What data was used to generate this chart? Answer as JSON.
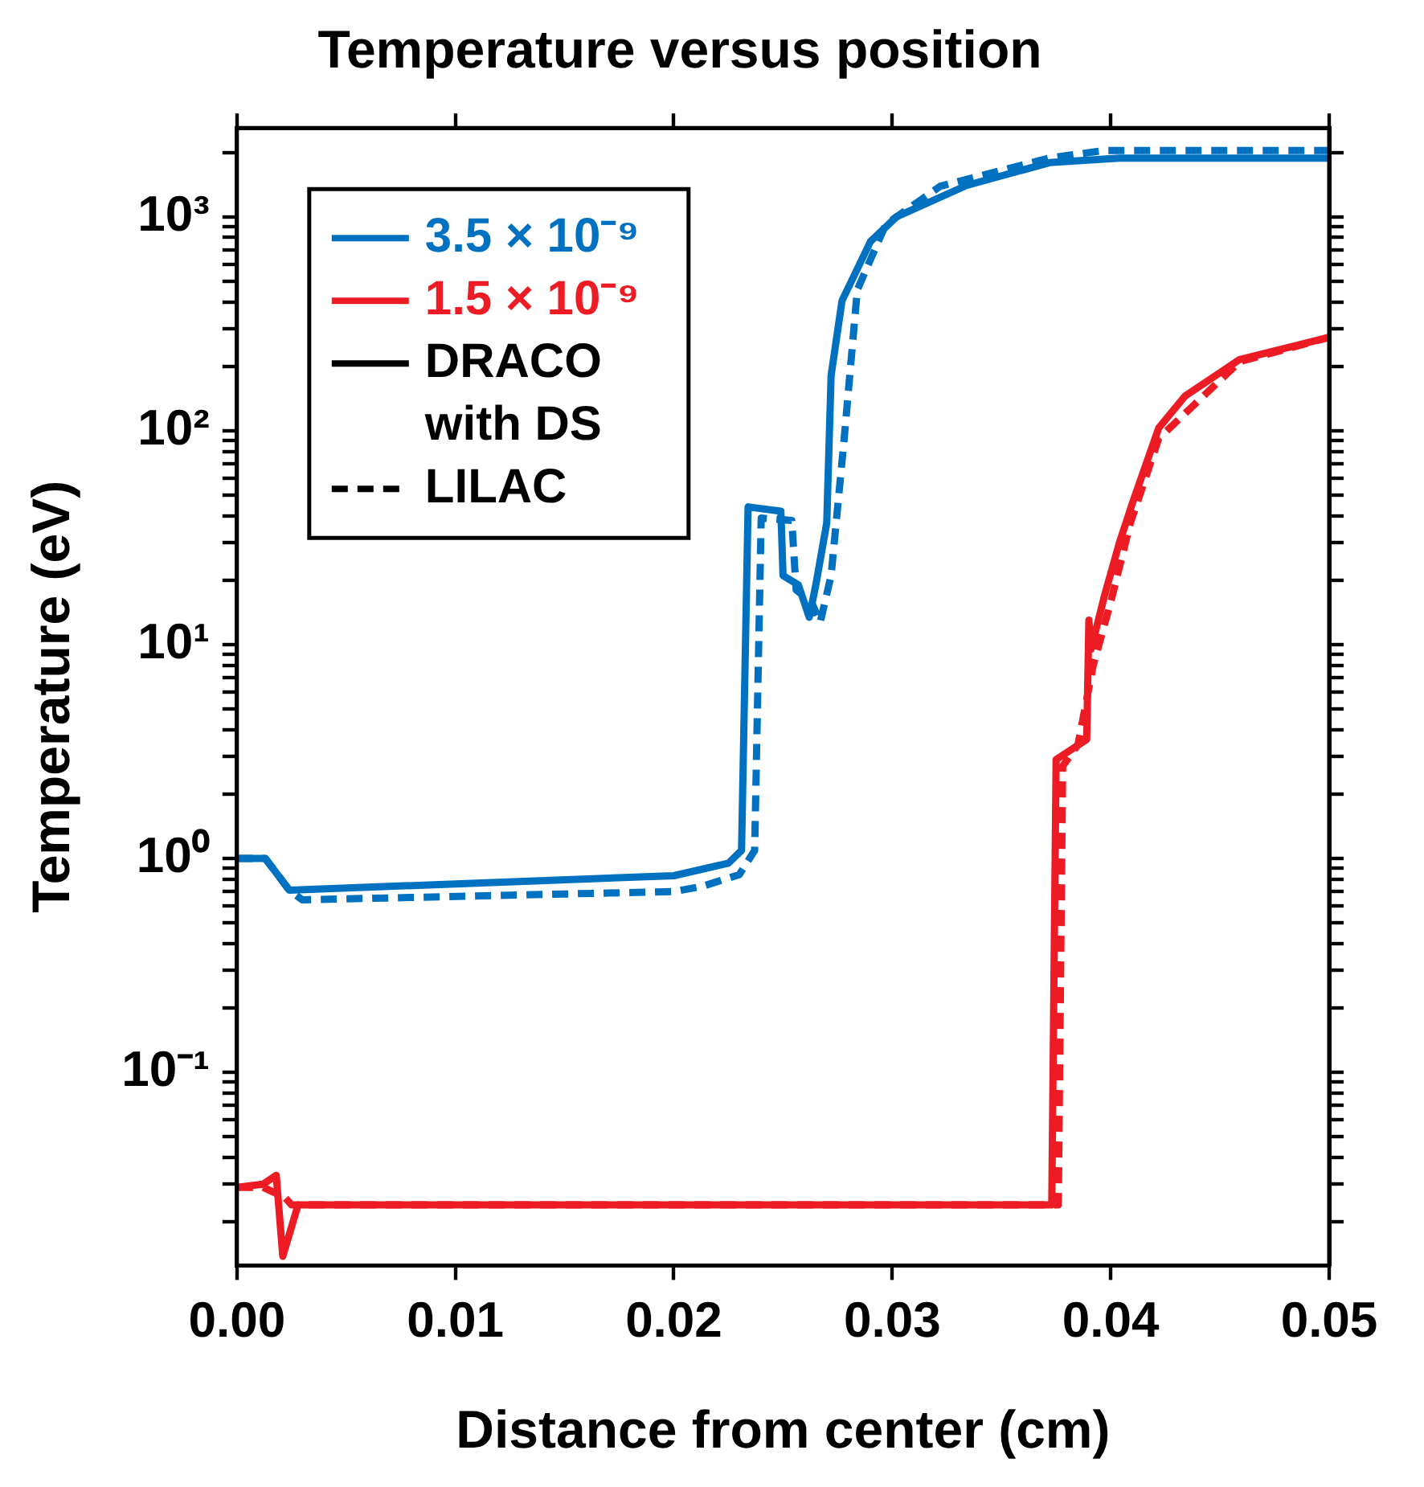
{
  "chart_data": {
    "type": "line",
    "title": "Temperature versus position",
    "xlabel": "Distance from center (cm)",
    "ylabel": "Temperature (eV)",
    "log": "y",
    "grid": false,
    "legend": "top left",
    "marker": "none",
    "xlim": [
      0,
      0.05
    ],
    "xticks": [
      {
        "value": 0,
        "label": "0.00"
      },
      {
        "value": 0.01,
        "label": "0.01"
      },
      {
        "value": 0.02,
        "label": "0.02"
      },
      {
        "value": 0.03,
        "label": "0.03"
      },
      {
        "value": 0.04,
        "label": "0.04"
      },
      {
        "value": 0.05,
        "label": "0.05"
      }
    ],
    "ylim": [
      0.0125,
      2600
    ],
    "yticks": [
      {
        "value": 0.02,
        "label": null
      },
      {
        "value": 0.03,
        "label": null
      },
      {
        "value": 0.04,
        "label": null
      },
      {
        "value": 0.05,
        "label": null
      },
      {
        "value": 0.06,
        "label": null
      },
      {
        "value": 0.07,
        "label": null
      },
      {
        "value": 0.08,
        "label": null
      },
      {
        "value": 0.09,
        "label": null
      },
      {
        "value": 0.1,
        "label": "10⁻¹"
      },
      {
        "value": 0.2,
        "label": null
      },
      {
        "value": 0.3,
        "label": null
      },
      {
        "value": 0.4,
        "label": null
      },
      {
        "value": 0.5,
        "label": null
      },
      {
        "value": 0.6,
        "label": null
      },
      {
        "value": 0.7,
        "label": null
      },
      {
        "value": 0.8,
        "label": null
      },
      {
        "value": 0.9,
        "label": null
      },
      {
        "value": 1,
        "label": "10⁰"
      },
      {
        "value": 2,
        "label": null
      },
      {
        "value": 3,
        "label": null
      },
      {
        "value": 4,
        "label": null
      },
      {
        "value": 5,
        "label": null
      },
      {
        "value": 6,
        "label": null
      },
      {
        "value": 7,
        "label": null
      },
      {
        "value": 8,
        "label": null
      },
      {
        "value": 9,
        "label": null
      },
      {
        "value": 10,
        "label": "10¹"
      },
      {
        "value": 20,
        "label": null
      },
      {
        "value": 30,
        "label": null
      },
      {
        "value": 40,
        "label": null
      },
      {
        "value": 50,
        "label": null
      },
      {
        "value": 60,
        "label": null
      },
      {
        "value": 70,
        "label": null
      },
      {
        "value": 80,
        "label": null
      },
      {
        "value": 90,
        "label": null
      },
      {
        "value": 100,
        "label": "10²"
      },
      {
        "value": 200,
        "label": null
      },
      {
        "value": 300,
        "label": null
      },
      {
        "value": 400,
        "label": null
      },
      {
        "value": 500,
        "label": null
      },
      {
        "value": 600,
        "label": null
      },
      {
        "value": 700,
        "label": null
      },
      {
        "value": 800,
        "label": null
      },
      {
        "value": 900,
        "label": null
      },
      {
        "value": 1000,
        "label": "10³"
      },
      {
        "value": 2000,
        "label": null
      }
    ],
    "series": [
      {
        "name": "3.5 × 10⁻⁹",
        "color": "#0070c0",
        "line_style": "solid",
        "x": [
          0,
          0.0013,
          0.0024,
          0.01,
          0.02,
          0.0225,
          0.0231,
          0.0234,
          0.0249,
          0.025,
          0.0257,
          0.0262,
          0.0265,
          0.027,
          0.0272,
          0.0277,
          0.029,
          0.0302,
          0.0334,
          0.0372,
          0.0404,
          0.05
        ],
        "values": [
          1.0,
          1.0,
          0.71,
          0.76,
          0.83,
          0.95,
          1.09,
          44,
          42,
          21,
          19,
          13.4,
          19,
          37,
          181,
          405,
          765,
          1000,
          1400,
          1790,
          1880,
          1880
        ]
      },
      {
        "name": "1.5 × 10⁻⁹",
        "color": "#ed1c24",
        "line_style": "solid",
        "x": [
          0,
          0.0012,
          0.0018,
          0.0021,
          0.0028,
          0.0373,
          0.0375,
          0.0389,
          0.039,
          0.0391,
          0.0397,
          0.0404,
          0.041,
          0.0422,
          0.0434,
          0.0459,
          0.05
        ],
        "values": [
          0.029,
          0.03,
          0.033,
          0.0138,
          0.024,
          0.024,
          2.9,
          3.6,
          13,
          9.5,
          16.7,
          30,
          46,
          103,
          145,
          215,
          273
        ]
      },
      {
        "color": "#0070c0",
        "line_style": "dashed",
        "x": [
          0,
          0.0013,
          0.0024,
          0.003,
          0.02,
          0.0213,
          0.023,
          0.0237,
          0.024,
          0.0254,
          0.0256,
          0.0263,
          0.0267,
          0.0272,
          0.0278,
          0.0284,
          0.0297,
          0.0322,
          0.0372,
          0.0397,
          0.05
        ],
        "values": [
          1.0,
          1.0,
          0.71,
          0.64,
          0.7,
          0.74,
          0.84,
          1.09,
          39,
          38,
          18,
          15.8,
          12.7,
          21,
          92,
          455,
          920,
          1390,
          1880,
          2040,
          2040
        ]
      },
      {
        "color": "#ed1c24",
        "line_style": "dashed",
        "x": [
          0,
          0.0012,
          0.0022,
          0.0025,
          0.0376,
          0.0378,
          0.0385,
          0.0392,
          0.04,
          0.0409,
          0.0422,
          0.0459,
          0.05
        ],
        "values": [
          0.029,
          0.029,
          0.026,
          0.024,
          0.024,
          2.7,
          3.4,
          8,
          15.8,
          37,
          92,
          210,
          273
        ]
      },
      {
        "name": "DRACO with DS",
        "color": "#000000",
        "line_style": "solid"
      },
      {
        "name": "LILAC",
        "color": "#000000",
        "line_style": "dashed"
      }
    ]
  }
}
